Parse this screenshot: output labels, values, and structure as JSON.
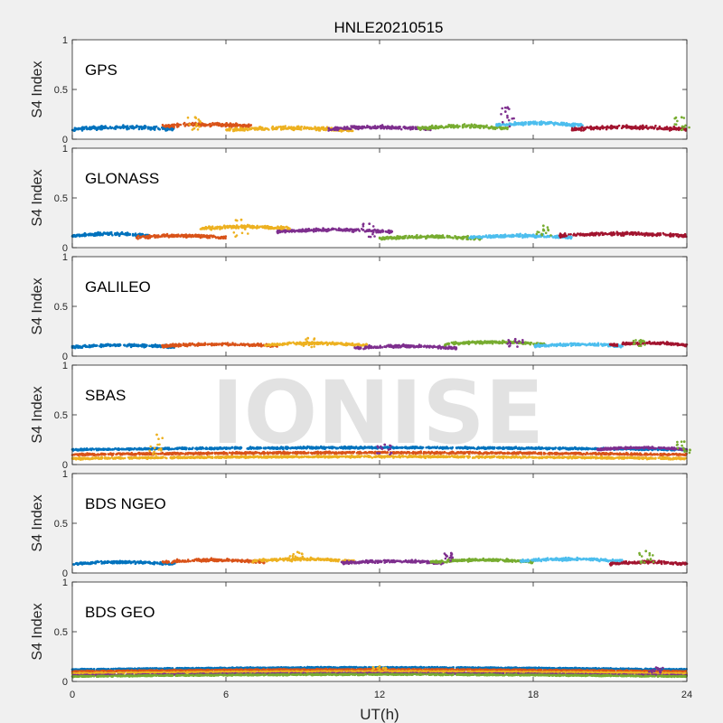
{
  "title": "HNLE20210515",
  "watermark": "IONISE",
  "colors": [
    "#0072BD",
    "#D95319",
    "#EDB120",
    "#7E2F8E",
    "#77AC30",
    "#4DBEEE",
    "#A2142F"
  ],
  "chart_data": {
    "type": "scatter",
    "title": "HNLE20210515",
    "xlabel": "UT(h)",
    "xlim": [
      0,
      24
    ],
    "xticks": [
      "0",
      "6",
      "12",
      "18",
      "24"
    ],
    "xtick_values": [
      0,
      6,
      12,
      18,
      24
    ],
    "ylabel": "S4 Index",
    "ylim": [
      0,
      1
    ],
    "yticks": [
      "0",
      "0.5",
      "1"
    ],
    "ytick_values": [
      0,
      0.5,
      1
    ],
    "grid": false,
    "panels": [
      {
        "label": "GPS",
        "baseline": 0.09,
        "noise": 0.045,
        "tracks": [
          {
            "start": 0,
            "end": 4,
            "level": 0.1
          },
          {
            "start": 3.5,
            "end": 7,
            "level": 0.13
          },
          {
            "start": 6,
            "end": 11,
            "level": 0.09
          },
          {
            "start": 10,
            "end": 14,
            "level": 0.1
          },
          {
            "start": 13.5,
            "end": 17,
            "level": 0.11
          },
          {
            "start": 16.5,
            "end": 20,
            "level": 0.14
          },
          {
            "start": 19.5,
            "end": 24,
            "level": 0.1
          }
        ],
        "peaks": [
          {
            "x": 4.8,
            "y": 0.22
          },
          {
            "x": 17.0,
            "y": 0.32
          },
          {
            "x": 23.8,
            "y": 0.22
          }
        ]
      },
      {
        "label": "GLONASS",
        "baseline": 0.1,
        "noise": 0.04,
        "tracks": [
          {
            "start": 0,
            "end": 3,
            "level": 0.12
          },
          {
            "start": 2.5,
            "end": 6,
            "level": 0.1
          },
          {
            "start": 5,
            "end": 8.5,
            "level": 0.19
          },
          {
            "start": 8,
            "end": 12.5,
            "level": 0.16
          },
          {
            "start": 12,
            "end": 16,
            "level": 0.09
          },
          {
            "start": 15.5,
            "end": 19.5,
            "level": 0.1
          },
          {
            "start": 19,
            "end": 24,
            "level": 0.12
          }
        ],
        "peaks": [
          {
            "x": 6.6,
            "y": 0.28
          },
          {
            "x": 11.6,
            "y": 0.24
          },
          {
            "x": 18.4,
            "y": 0.22
          }
        ]
      },
      {
        "label": "GALILEO",
        "baseline": 0.09,
        "noise": 0.035,
        "tracks": [
          {
            "start": 0,
            "end": 4,
            "level": 0.09
          },
          {
            "start": 3.5,
            "end": 8,
            "level": 0.1
          },
          {
            "start": 7.5,
            "end": 11.5,
            "level": 0.11
          },
          {
            "start": 11,
            "end": 15,
            "level": 0.08
          },
          {
            "start": 14.5,
            "end": 18.5,
            "level": 0.12
          },
          {
            "start": 18,
            "end": 21.5,
            "level": 0.1
          },
          {
            "start": 21,
            "end": 24,
            "level": 0.11
          }
        ],
        "peaks": [
          {
            "x": 9.2,
            "y": 0.18
          },
          {
            "x": 17.3,
            "y": 0.17
          },
          {
            "x": 22.2,
            "y": 0.16
          }
        ]
      },
      {
        "label": "SBAS",
        "baseline": 0.1,
        "noise": 0.025,
        "tracks": [
          {
            "start": 0,
            "end": 24,
            "level": 0.15
          },
          {
            "start": 0,
            "end": 24,
            "level": 0.1
          },
          {
            "start": 0,
            "end": 24,
            "level": 0.06
          },
          {
            "start": 20.5,
            "end": 24,
            "level": 0.15
          }
        ],
        "peaks": [
          {
            "x": 3.3,
            "y": 0.3
          },
          {
            "x": 12.2,
            "y": 0.2
          },
          {
            "x": 23.9,
            "y": 0.23
          }
        ]
      },
      {
        "label": "BDS NGEO",
        "baseline": 0.09,
        "noise": 0.035,
        "tracks": [
          {
            "start": 0,
            "end": 4,
            "level": 0.09
          },
          {
            "start": 3.5,
            "end": 7.5,
            "level": 0.11
          },
          {
            "start": 7,
            "end": 11,
            "level": 0.12
          },
          {
            "start": 10.5,
            "end": 14.5,
            "level": 0.1
          },
          {
            "start": 14,
            "end": 18,
            "level": 0.11
          },
          {
            "start": 17.5,
            "end": 21.5,
            "level": 0.12
          },
          {
            "start": 21,
            "end": 24,
            "level": 0.09
          }
        ],
        "peaks": [
          {
            "x": 8.8,
            "y": 0.21
          },
          {
            "x": 14.8,
            "y": 0.2
          },
          {
            "x": 22.4,
            "y": 0.22
          }
        ]
      },
      {
        "label": "BDS GEO",
        "baseline": 0.09,
        "noise": 0.015,
        "tracks": [
          {
            "start": 0,
            "end": 24,
            "level": 0.12
          },
          {
            "start": 0,
            "end": 24,
            "level": 0.1
          },
          {
            "start": 0,
            "end": 24,
            "level": 0.08
          },
          {
            "start": 0,
            "end": 24,
            "level": 0.06
          },
          {
            "start": 0,
            "end": 24,
            "level": 0.05
          }
        ],
        "peaks": [
          {
            "x": 12.0,
            "y": 0.15
          },
          {
            "x": 22.8,
            "y": 0.14
          }
        ]
      }
    ]
  }
}
